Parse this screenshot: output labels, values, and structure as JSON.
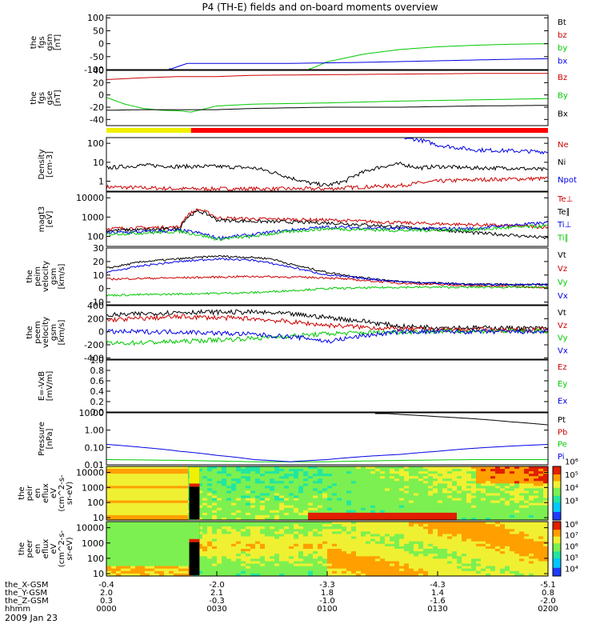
{
  "title": "P4 (TH-E) fields and on-board moments overview",
  "date_label": "2009 Jan 23",
  "colors": {
    "black": "#000000",
    "red": "#cc0000",
    "green": "#00c800",
    "blue": "#0000e6",
    "yellow": "#f0f000",
    "bar_red": "#ff0000"
  },
  "panels": [
    {
      "id": "fgs-gse",
      "ylabel": [
        "the",
        "fgs",
        "gsm",
        "[nT]"
      ],
      "ticks": [
        "100",
        "50",
        "0",
        "-50",
        "-100"
      ],
      "tick_values": [
        100,
        50,
        0,
        -50,
        -100
      ],
      "ylim": [
        -100,
        110
      ],
      "legend": [
        {
          "label": "Bt",
          "color": "#000000"
        },
        {
          "label": "bz",
          "color": "#cc0000"
        },
        {
          "label": "by",
          "color": "#00c800"
        },
        {
          "label": "bx",
          "color": "#0000e6"
        }
      ]
    },
    {
      "id": "fgs-gsm",
      "ylabel": [
        "the",
        "fgs",
        "gse",
        "[nT]"
      ],
      "ticks": [
        "40",
        "20",
        "0",
        "-20",
        "-40"
      ],
      "tick_values": [
        40,
        20,
        0,
        -20,
        -40
      ],
      "ylim": [
        -50,
        40
      ],
      "legend": [
        {
          "label": "Bz",
          "color": "#cc0000"
        },
        {
          "label": "By",
          "color": "#00c800"
        },
        {
          "label": "Bx",
          "color": "#000000"
        }
      ]
    },
    {
      "id": "density",
      "ylabel": [
        "Density",
        "[cm-3]"
      ],
      "ticks": [
        "100",
        "10",
        "1"
      ],
      "tick_values": [
        100,
        10,
        1
      ],
      "ylim": [
        0.3,
        200
      ],
      "log": true,
      "legend": [
        {
          "label": "Ne",
          "color": "#cc0000"
        },
        {
          "label": "Ni",
          "color": "#000000"
        },
        {
          "label": "Npot",
          "color": "#0000e6"
        }
      ]
    },
    {
      "id": "temperature",
      "ylabel": [
        "magt3",
        "[eV]"
      ],
      "ticks": [
        "10000",
        "1000",
        "100"
      ],
      "tick_values": [
        10000,
        1000,
        100
      ],
      "ylim": [
        30,
        20000
      ],
      "log": true,
      "legend": [
        {
          "label": "Te⊥",
          "color": "#cc0000"
        },
        {
          "label": "Te∥",
          "color": "#000000"
        },
        {
          "label": "Ti⊥",
          "color": "#0000e6"
        },
        {
          "label": "Ti∥",
          "color": "#00c800"
        }
      ]
    },
    {
      "id": "velocity-peim",
      "ylabel": [
        "the",
        "peim",
        "velocity",
        "gsm",
        "[km/s]"
      ],
      "ticks": [
        "30",
        "20",
        "10",
        "0",
        "-10"
      ],
      "tick_values": [
        30,
        20,
        10,
        0,
        -10
      ],
      "ylim": [
        -12,
        30
      ],
      "legend": [
        {
          "label": "Vt",
          "color": "#000000"
        },
        {
          "label": "Vz",
          "color": "#cc0000"
        },
        {
          "label": "Vy",
          "color": "#00c800"
        },
        {
          "label": "Vx",
          "color": "#0000e6"
        }
      ]
    },
    {
      "id": "velocity-peem",
      "ylabel": [
        "the",
        "peem",
        "velocity",
        "gsm",
        "[km/s]"
      ],
      "ticks": [
        "400",
        "200",
        "0",
        "-200",
        "-400"
      ],
      "tick_values": [
        400,
        200,
        0,
        -200,
        -400
      ],
      "ylim": [
        -420,
        400
      ],
      "legend": [
        {
          "label": "Vt",
          "color": "#000000"
        },
        {
          "label": "Vz",
          "color": "#cc0000"
        },
        {
          "label": "Vy",
          "color": "#00c800"
        },
        {
          "label": "Vx",
          "color": "#0000e6"
        }
      ]
    },
    {
      "id": "efield",
      "ylabel": [
        "E=-VxB",
        "[mV/m]"
      ],
      "ticks": [
        "1.0",
        "0.8",
        "0.6",
        "0.4",
        "0.2",
        "0.0"
      ],
      "tick_values": [
        1.0,
        0.8,
        0.6,
        0.4,
        0.2,
        0.0
      ],
      "ylim": [
        0,
        1
      ],
      "legend": [
        {
          "label": "Ez",
          "color": "#cc0000"
        },
        {
          "label": "Ey",
          "color": "#00c800"
        },
        {
          "label": "Ex",
          "color": "#0000e6"
        }
      ]
    },
    {
      "id": "pressure",
      "ylabel": [
        "Pressure",
        "[nPa]"
      ],
      "ticks": [
        "10.00",
        "1.00",
        "0.10",
        "0.01"
      ],
      "tick_values": [
        10,
        1,
        0.1,
        0.01
      ],
      "ylim": [
        0.01,
        10
      ],
      "log": true,
      "legend": [
        {
          "label": "Pt",
          "color": "#000000"
        },
        {
          "label": "Pb",
          "color": "#cc0000"
        },
        {
          "label": "Pe",
          "color": "#00c800"
        },
        {
          "label": "Pi",
          "color": "#0000e6"
        }
      ]
    },
    {
      "id": "ion-spec",
      "ylabel": [
        "the",
        "peir",
        "en",
        "eflux",
        "eV",
        "(cm^2-s-",
        "sr-eV)"
      ],
      "ticks": [
        "10000",
        "1000",
        "100",
        "10"
      ],
      "tick_values": [
        10000,
        1000,
        100,
        10
      ],
      "ylim": [
        7,
        25000
      ],
      "log": true,
      "colorbar_ticks": [
        "10⁶",
        "10⁵",
        "10⁴",
        "10³"
      ],
      "colorbar_range": [
        2.5,
        6.6
      ]
    },
    {
      "id": "electron-spec",
      "ylabel": [
        "the",
        "peer",
        "en",
        "eflux",
        "eV",
        "(cm^2-s-",
        "sr-eV)"
      ],
      "ticks": [
        "10000",
        "1000",
        "100",
        "10"
      ],
      "tick_values": [
        10000,
        1000,
        100,
        10
      ],
      "ylim": [
        7,
        25000
      ],
      "log": true,
      "colorbar_ticks": [
        "10⁸",
        "10⁷",
        "10⁶",
        "10⁵",
        "10⁴"
      ],
      "colorbar_range": [
        3.3,
        8.2
      ]
    }
  ],
  "xaxis": {
    "row_labels": [
      "the_X-GSM",
      "the_Y-GSM",
      "the_Z-GSM",
      "hhmm"
    ],
    "columns": [
      {
        "t": 0,
        "values": [
          "-0.4",
          "2.0",
          "0.3",
          "0000"
        ]
      },
      {
        "t": 30,
        "values": [
          "-2.0",
          "2.1",
          "-0.3",
          "0030"
        ]
      },
      {
        "t": 60,
        "values": [
          "-3.3",
          "1.8",
          "-1.0",
          "0100"
        ]
      },
      {
        "t": 90,
        "values": [
          "-4.3",
          "1.4",
          "-1.6",
          "0130"
        ]
      },
      {
        "t": 120,
        "values": [
          "-5.1",
          "0.8",
          "-2.0",
          "0200"
        ]
      }
    ],
    "range_minutes": [
      0,
      120
    ]
  },
  "chart_data": {
    "type": "line",
    "title": "P4 (TH-E) fields and on-board moments overview",
    "x_unit": "minutes since 0000 UT",
    "mode_bar": [
      {
        "from": 0,
        "to": 23,
        "color": "yellow"
      },
      {
        "from": 23,
        "to": 120,
        "color": "red"
      }
    ],
    "panels": {
      "fgs_gsm": {
        "bx": {
          "x": [
            17,
            22,
            30,
            50,
            70,
            90,
            110,
            120
          ],
          "y": [
            -100,
            -76,
            -76,
            -76,
            -72,
            -66,
            -60,
            -58
          ]
        },
        "by": {
          "x": [
            55,
            60,
            70,
            80,
            90,
            100,
            110,
            120
          ],
          "y": [
            -100,
            -70,
            -40,
            -22,
            -12,
            -6,
            -2,
            0
          ]
        }
      },
      "fgs_gse": {
        "Bz": {
          "x": [
            0,
            10,
            20,
            30,
            40,
            60,
            80,
            100,
            120
          ],
          "y": [
            25,
            28,
            30,
            30,
            32,
            33,
            34,
            35,
            35
          ]
        },
        "By": {
          "x": [
            0,
            5,
            10,
            15,
            20,
            23,
            30,
            40,
            60,
            80,
            100,
            120
          ],
          "y": [
            -4,
            -15,
            -22,
            -25,
            -26,
            -28,
            -18,
            -15,
            -13,
            -10,
            -8,
            -6
          ]
        },
        "Bx": {
          "x": [
            0,
            10,
            20,
            30,
            40,
            60,
            80,
            100,
            120
          ],
          "y": [
            -25,
            -24,
            -24,
            -24,
            -22,
            -20,
            -20,
            -18,
            -17
          ]
        }
      },
      "density": {
        "Ni": {
          "x": [
            0,
            10,
            20,
            30,
            40,
            45,
            50,
            55,
            60,
            65,
            70,
            75,
            80,
            85,
            90,
            100,
            110,
            120
          ],
          "y": [
            5,
            7,
            6,
            6,
            5,
            3,
            1.5,
            0.8,
            0.6,
            1,
            3,
            6,
            8,
            5,
            6,
            5,
            5,
            4
          ]
        },
        "Ne": {
          "x": [
            0,
            10,
            20,
            30,
            40,
            50,
            60,
            70,
            80,
            90,
            100,
            120
          ],
          "y": [
            0.5,
            0.45,
            0.4,
            0.4,
            0.4,
            0.4,
            0.4,
            0.5,
            0.6,
            1,
            1.2,
            1.4
          ]
        },
        "Npot": {
          "x": [
            81,
            85,
            90,
            95,
            100,
            110,
            120
          ],
          "y": [
            200,
            150,
            80,
            60,
            45,
            40,
            35
          ]
        }
      },
      "temperature": {
        "Te_perp": {
          "x": [
            0,
            10,
            20,
            25,
            30,
            40,
            60,
            80,
            100,
            120
          ],
          "y": [
            250,
            280,
            300,
            2500,
            900,
            800,
            700,
            500,
            400,
            300
          ]
        },
        "Te_par": {
          "x": [
            0,
            10,
            20,
            25,
            30,
            40,
            60,
            80,
            100,
            120
          ],
          "y": [
            200,
            220,
            250,
            2000,
            700,
            600,
            500,
            300,
            150,
            80
          ]
        },
        "Ti_perp": {
          "x": [
            0,
            10,
            20,
            25,
            30,
            40,
            60,
            80,
            100,
            120
          ],
          "y": [
            150,
            170,
            200,
            150,
            80,
            120,
            300,
            250,
            250,
            500
          ]
        },
        "Ti_par": {
          "x": [
            0,
            10,
            20,
            25,
            30,
            40,
            60,
            80,
            100,
            120
          ],
          "y": [
            130,
            150,
            180,
            120,
            70,
            100,
            250,
            200,
            220,
            350
          ]
        }
      },
      "velocity_peim": {
        "Vt": {
          "x": [
            0,
            10,
            20,
            30,
            40,
            45,
            50,
            60,
            70,
            80,
            100,
            120
          ],
          "y": [
            15,
            20,
            22,
            24,
            23,
            22,
            18,
            12,
            8,
            5,
            3,
            3
          ]
        },
        "Vz": {
          "x": [
            0,
            20,
            40,
            60,
            80,
            100,
            120
          ],
          "y": [
            7,
            8,
            9,
            8,
            4,
            2,
            1
          ]
        },
        "Vy": {
          "x": [
            0,
            20,
            40,
            60,
            80,
            100,
            120
          ],
          "y": [
            -5,
            -4,
            -3,
            0,
            1,
            1,
            1
          ]
        },
        "Vx": {
          "x": [
            0,
            10,
            20,
            30,
            40,
            50,
            60,
            80,
            100,
            120
          ],
          "y": [
            12,
            17,
            20,
            22,
            21,
            16,
            10,
            5,
            3,
            3
          ]
        }
      },
      "velocity_peem": {
        "Vt": {
          "x": [
            0,
            20,
            40,
            50,
            60,
            70,
            80,
            100,
            120
          ],
          "y": [
            250,
            300,
            300,
            270,
            220,
            160,
            80,
            60,
            50
          ]
        },
        "Vz": {
          "x": [
            0,
            20,
            40,
            60,
            80,
            100,
            120
          ],
          "y": [
            180,
            230,
            200,
            100,
            40,
            30,
            30
          ]
        },
        "Vy": {
          "x": [
            0,
            20,
            40,
            60,
            80,
            100,
            120
          ],
          "y": [
            -180,
            -150,
            -100,
            -30,
            0,
            10,
            10
          ]
        },
        "Vx": {
          "x": [
            0,
            20,
            40,
            55,
            60,
            70,
            80,
            100,
            120
          ],
          "y": [
            0,
            0,
            -40,
            -100,
            -150,
            -60,
            0,
            0,
            0
          ]
        }
      },
      "pressure": {
        "Pt": {
          "x": [
            73,
            80,
            90,
            100,
            110,
            120
          ],
          "y": [
            10,
            8,
            6,
            4.5,
            3,
            2
          ]
        },
        "Pi": {
          "x": [
            0,
            10,
            20,
            30,
            40,
            50,
            60,
            70,
            80,
            90,
            100,
            110,
            120
          ],
          "y": [
            0.15,
            0.1,
            0.06,
            0.035,
            0.02,
            0.015,
            0.02,
            0.03,
            0.04,
            0.06,
            0.09,
            0.12,
            0.15
          ]
        },
        "Pe": {
          "x": [
            0,
            20,
            40,
            60,
            80,
            100,
            120
          ],
          "y": [
            0.02,
            0.018,
            0.015,
            0.015,
            0.018,
            0.02,
            0.02
          ]
        }
      }
    }
  }
}
